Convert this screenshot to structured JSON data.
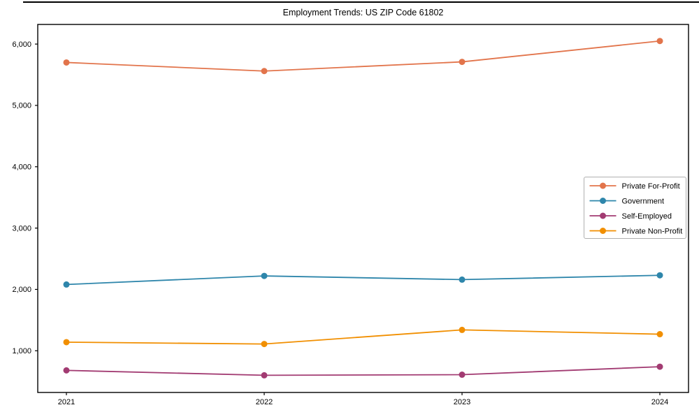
{
  "chart_data": {
    "type": "line",
    "title": "Employment Trends: US ZIP Code 61802",
    "xlabel": "",
    "ylabel": "",
    "x": [
      2021,
      2022,
      2023,
      2024
    ],
    "series": [
      {
        "name": "Private For-Profit",
        "color": "#E2744B",
        "values": [
          5700,
          5560,
          5710,
          6050
        ]
      },
      {
        "name": "Government",
        "color": "#2E86AB",
        "values": [
          2080,
          2220,
          2160,
          2230
        ]
      },
      {
        "name": "Self-Employed",
        "color": "#A23B72",
        "values": [
          680,
          600,
          610,
          740
        ]
      },
      {
        "name": "Private Non-Profit",
        "color": "#F18F01",
        "values": [
          1140,
          1110,
          1340,
          1270
        ]
      }
    ],
    "ylim": [
      320,
      6320
    ],
    "yticks": [
      1000,
      2000,
      3000,
      4000,
      5000,
      6000
    ],
    "ytick_labels": [
      "1,000",
      "2,000",
      "3,000",
      "4,000",
      "5,000",
      "6,000"
    ],
    "xtick_labels": [
      "2021",
      "2022",
      "2023",
      "2024"
    ],
    "grid": false,
    "legend_position": "center-right",
    "axis_color": "#000000",
    "legend_border_color": "#b0b0b0"
  }
}
